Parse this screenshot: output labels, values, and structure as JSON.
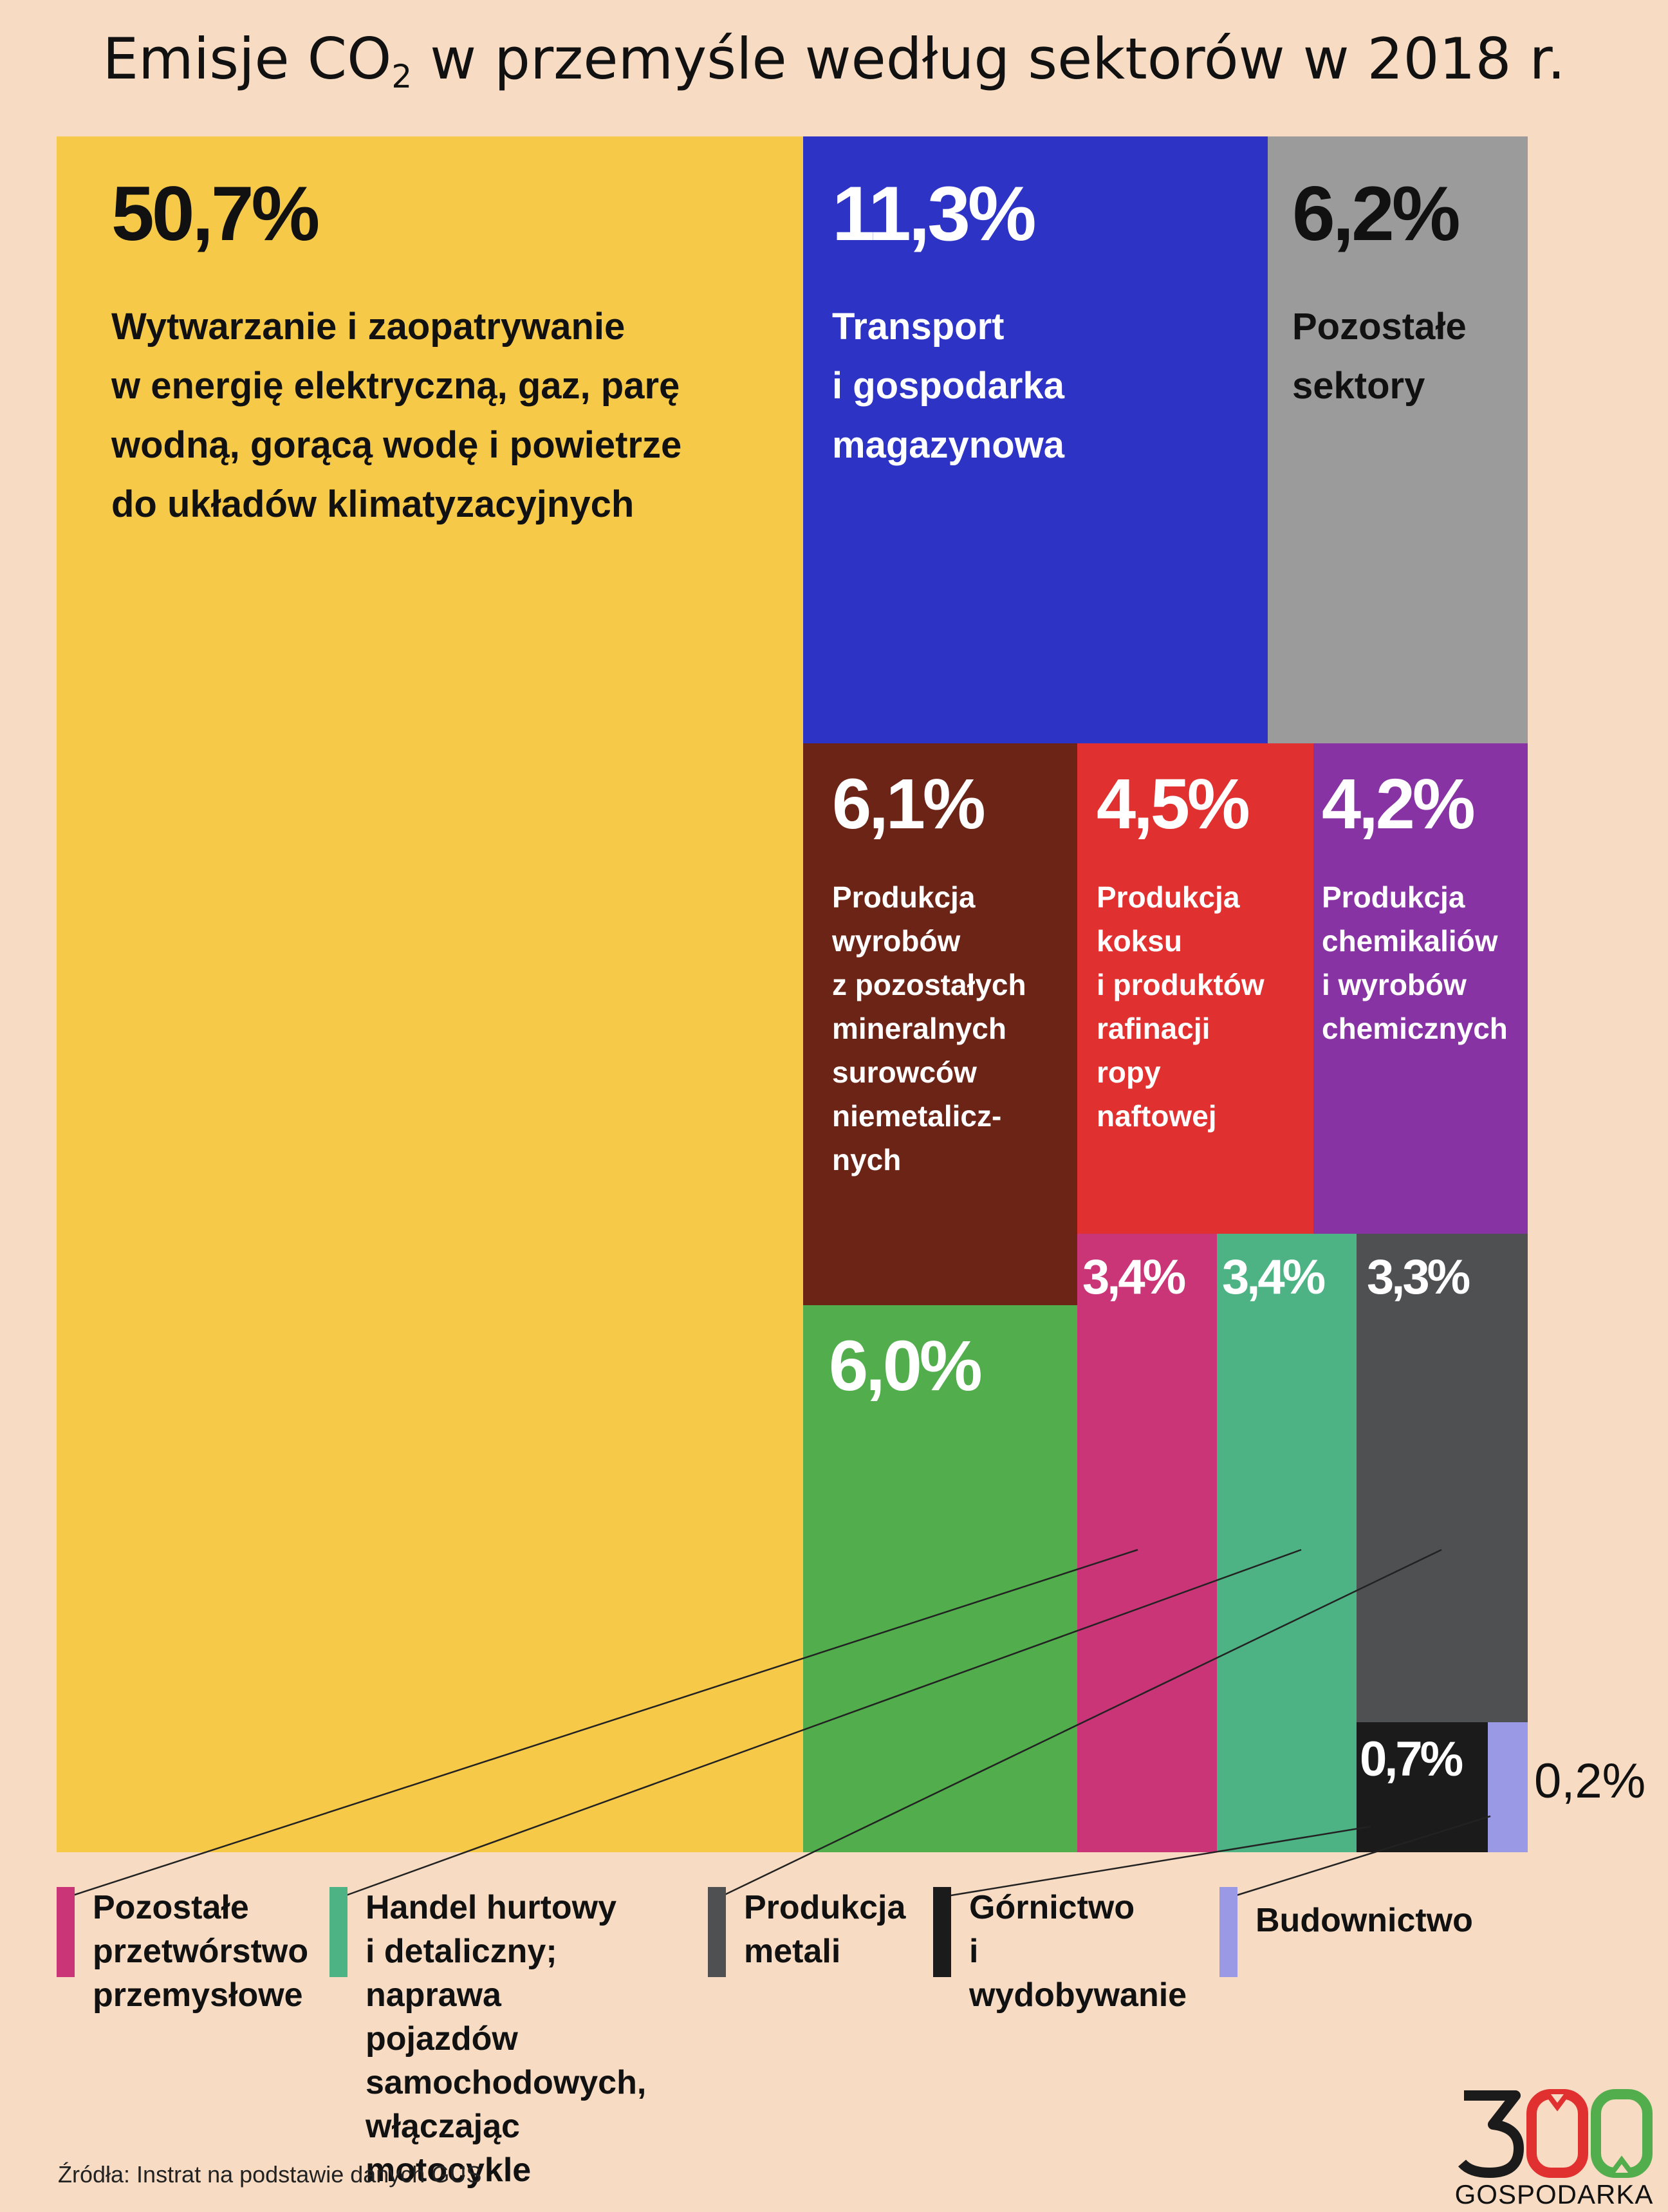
{
  "title": {
    "main": "Emisje CO",
    "sub": "2",
    "rest": " w przemyśle według sektorów w 2018 r."
  },
  "chart_data": {
    "type": "treemap",
    "unit": "%",
    "items": [
      {
        "id": "energia",
        "value_label": "50,7%",
        "value": 50.7,
        "label": "Wytwarzanie i zaopatrywanie\nw energię elektryczną, gaz, parę\nwodną, gorącą wodę i powietrze\ndo układów klimatyzacyjnych",
        "color": "#f7c948"
      },
      {
        "id": "transport",
        "value_label": "11,3%",
        "value": 11.3,
        "label": "Transport\ni gospodarka\nmagazynowa",
        "color": "#2d33c5"
      },
      {
        "id": "pozostale-sektory",
        "value_label": "6,2%",
        "value": 6.2,
        "label": "Pozostałe\nsektory",
        "color": "#9b9b9b"
      },
      {
        "id": "mineralne",
        "value_label": "6,1%",
        "value": 6.1,
        "label": "Produkcja\nwyrobów\nz pozostałych\nmineralnych\nsurowców\nniemetalicz-\nnych",
        "color": "#6b2416"
      },
      {
        "id": "koks",
        "value_label": "4,5%",
        "value": 4.5,
        "label": "Produkcja\nkoksu\ni produktów\nrafinacji\nropy\nnaftowej",
        "color": "#e03030"
      },
      {
        "id": "chemikalia",
        "value_label": "4,2%",
        "value": 4.2,
        "label": "Produkcja\nchemikaliów\ni wyrobów\nchemicznych",
        "color": "#8833a4"
      },
      {
        "id": "green-6",
        "value_label": "6,0%",
        "value": 6.0,
        "label": "",
        "color": "#52ae4d"
      },
      {
        "id": "przetworstwo",
        "value_label": "3,4%",
        "value": 3.4,
        "label": "",
        "color": "#c93576"
      },
      {
        "id": "handel",
        "value_label": "3,4%",
        "value": 3.4,
        "label": "",
        "color": "#4db385"
      },
      {
        "id": "metale",
        "value_label": "3,3%",
        "value": 3.3,
        "label": "",
        "color": "#4f5052"
      },
      {
        "id": "gornictwo",
        "value_label": "0,7%",
        "value": 0.7,
        "label": "",
        "color": "#1b1b1b"
      },
      {
        "id": "budownictwo",
        "value_label": "0,2%",
        "value": 0.2,
        "label": "",
        "color": "#9999e6"
      }
    ],
    "legend": [
      {
        "id": "przetworstwo",
        "label": "Pozostałe\nprzetwórstwo\nprzemysłowe",
        "color": "#c93576"
      },
      {
        "id": "handel",
        "label": "Handel hurtowy\ni detaliczny;\nnaprawa pojazdów\nsamochodowych,\nwłączając motocykle",
        "color": "#4db385"
      },
      {
        "id": "metale",
        "label": "Produkcja\nmetali",
        "color": "#4f5052"
      },
      {
        "id": "gornictwo",
        "label": "Górnictwo\ni wydobywanie",
        "color": "#1b1b1b"
      },
      {
        "id": "budownictwo",
        "label": "Budownictwo",
        "color": "#9999e6"
      }
    ]
  },
  "source": "Źródła: Instrat na podstawie danych GUS",
  "logo": {
    "number": "300",
    "text": "GOSPODARKA",
    "colors": [
      "#1b1b1b",
      "#e03030",
      "#52ae4d"
    ]
  }
}
